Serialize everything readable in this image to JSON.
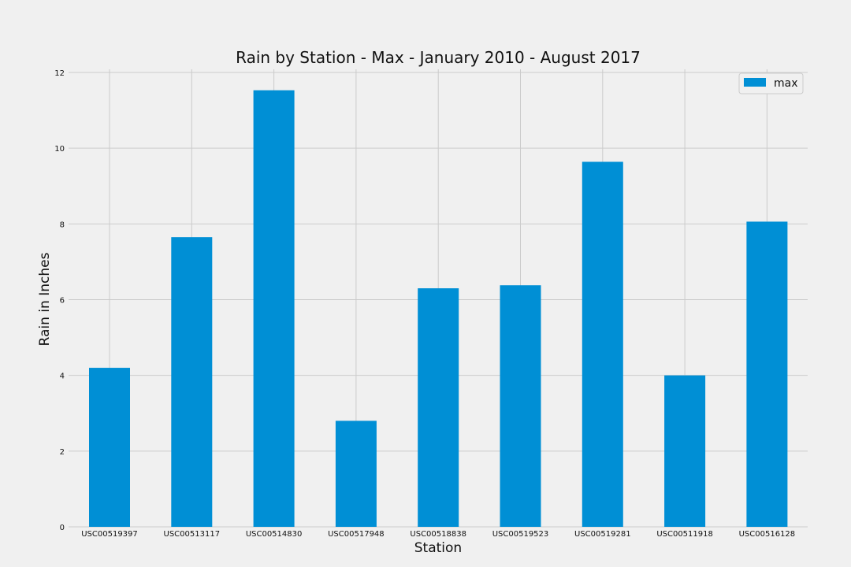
{
  "chart_data": {
    "type": "bar",
    "title": "Rain by Station - Max - January 2010 - August 2017",
    "xlabel": "Station",
    "ylabel": "Rain in Inches",
    "ylim": [
      0,
      12
    ],
    "yticks": [
      "0",
      "2",
      "4",
      "6",
      "8",
      "10",
      "12"
    ],
    "grid": true,
    "legend_position": "top-right",
    "categories": [
      "USC00519397",
      "USC00513117",
      "USC00514830",
      "USC00517948",
      "USC00518838",
      "USC00519523",
      "USC00519281",
      "USC00511918",
      "USC00516128"
    ],
    "series": [
      {
        "name": "max",
        "color": "#008fd5",
        "values": [
          4.2,
          7.65,
          11.53,
          2.8,
          6.3,
          6.38,
          9.64,
          4.0,
          8.06
        ]
      }
    ]
  }
}
